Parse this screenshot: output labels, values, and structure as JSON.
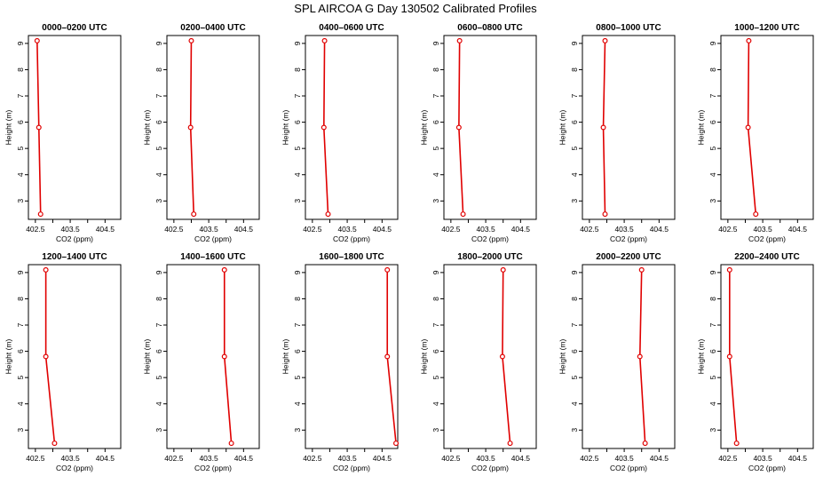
{
  "figure": {
    "title": "SPL AIRCOA G  Day 130502  Calibrated Profiles"
  },
  "chart_data": [
    {
      "type": "line",
      "title": "0000–0200 UTC",
      "xlabel": "CO2 (ppm)",
      "ylabel": "Height (m)",
      "xlim": [
        402.3,
        404.95
      ],
      "ylim": [
        2.3,
        9.3
      ],
      "xticks": [
        "402.5",
        "403.5",
        "404.5"
      ],
      "yticks": [
        "3",
        "4",
        "5",
        "6",
        "7",
        "8",
        "9"
      ],
      "grid": false,
      "line_color": "#e00000",
      "x": [
        402.55,
        402.6,
        402.65
      ],
      "y": [
        9.1,
        5.8,
        2.5
      ]
    },
    {
      "type": "line",
      "title": "0200–0400 UTC",
      "xlabel": "CO2 (ppm)",
      "ylabel": "Height (m)",
      "xlim": [
        402.3,
        404.95
      ],
      "ylim": [
        2.3,
        9.3
      ],
      "xticks": [
        "402.5",
        "403.5",
        "404.5"
      ],
      "yticks": [
        "3",
        "4",
        "5",
        "6",
        "7",
        "8",
        "9"
      ],
      "grid": false,
      "line_color": "#e00000",
      "x": [
        403.0,
        402.98,
        403.07
      ],
      "y": [
        9.1,
        5.8,
        2.5
      ]
    },
    {
      "type": "line",
      "title": "0400–0600 UTC",
      "xlabel": "CO2 (ppm)",
      "ylabel": "Height (m)",
      "xlim": [
        402.3,
        404.95
      ],
      "ylim": [
        2.3,
        9.3
      ],
      "xticks": [
        "402.5",
        "403.5",
        "404.5"
      ],
      "yticks": [
        "3",
        "4",
        "5",
        "6",
        "7",
        "8",
        "9"
      ],
      "grid": false,
      "line_color": "#e00000",
      "x": [
        402.85,
        402.83,
        402.95
      ],
      "y": [
        9.1,
        5.8,
        2.5
      ]
    },
    {
      "type": "line",
      "title": "0600–0800 UTC",
      "xlabel": "CO2 (ppm)",
      "ylabel": "Height (m)",
      "xlim": [
        402.3,
        404.95
      ],
      "ylim": [
        2.3,
        9.3
      ],
      "xticks": [
        "402.5",
        "403.5",
        "404.5"
      ],
      "yticks": [
        "3",
        "4",
        "5",
        "6",
        "7",
        "8",
        "9"
      ],
      "grid": false,
      "line_color": "#e00000",
      "x": [
        402.75,
        402.73,
        402.85
      ],
      "y": [
        9.1,
        5.8,
        2.5
      ]
    },
    {
      "type": "line",
      "title": "0800–1000 UTC",
      "xlabel": "CO2 (ppm)",
      "ylabel": "Height (m)",
      "xlim": [
        402.3,
        404.95
      ],
      "ylim": [
        2.3,
        9.3
      ],
      "xticks": [
        "402.5",
        "403.5",
        "404.5"
      ],
      "yticks": [
        "3",
        "4",
        "5",
        "6",
        "7",
        "8",
        "9"
      ],
      "grid": false,
      "line_color": "#e00000",
      "x": [
        402.95,
        402.9,
        402.95
      ],
      "y": [
        9.1,
        5.8,
        2.5
      ]
    },
    {
      "type": "line",
      "title": "1000–1200 UTC",
      "xlabel": "CO2 (ppm)",
      "ylabel": "Height (m)",
      "xlim": [
        402.3,
        404.95
      ],
      "ylim": [
        2.3,
        9.3
      ],
      "xticks": [
        "402.5",
        "403.5",
        "404.5"
      ],
      "yticks": [
        "3",
        "4",
        "5",
        "6",
        "7",
        "8",
        "9"
      ],
      "grid": false,
      "line_color": "#e00000",
      "x": [
        403.1,
        403.08,
        403.3
      ],
      "y": [
        9.1,
        5.8,
        2.5
      ]
    },
    {
      "type": "line",
      "title": "1200–1400 UTC",
      "xlabel": "CO2 (ppm)",
      "ylabel": "Height (m)",
      "xlim": [
        402.3,
        404.95
      ],
      "ylim": [
        2.3,
        9.3
      ],
      "xticks": [
        "402.5",
        "403.5",
        "404.5"
      ],
      "yticks": [
        "3",
        "4",
        "5",
        "6",
        "7",
        "8",
        "9"
      ],
      "grid": false,
      "line_color": "#e00000",
      "x": [
        402.8,
        402.8,
        403.05
      ],
      "y": [
        9.1,
        5.8,
        2.5
      ]
    },
    {
      "type": "line",
      "title": "1400–1600 UTC",
      "xlabel": "CO2 (ppm)",
      "ylabel": "Height (m)",
      "xlim": [
        402.3,
        404.95
      ],
      "ylim": [
        2.3,
        9.3
      ],
      "xticks": [
        "402.5",
        "403.5",
        "404.5"
      ],
      "yticks": [
        "3",
        "4",
        "5",
        "6",
        "7",
        "8",
        "9"
      ],
      "grid": false,
      "line_color": "#e00000",
      "x": [
        403.95,
        403.95,
        404.15
      ],
      "y": [
        9.1,
        5.8,
        2.5
      ]
    },
    {
      "type": "line",
      "title": "1600–1800 UTC",
      "xlabel": "CO2 (ppm)",
      "ylabel": "Height (m)",
      "xlim": [
        402.3,
        404.95
      ],
      "ylim": [
        2.3,
        9.3
      ],
      "xticks": [
        "402.5",
        "403.5",
        "404.5"
      ],
      "yticks": [
        "3",
        "4",
        "5",
        "6",
        "7",
        "8",
        "9"
      ],
      "grid": false,
      "line_color": "#e00000",
      "x": [
        404.65,
        404.65,
        404.9
      ],
      "y": [
        9.1,
        5.8,
        2.5
      ]
    },
    {
      "type": "line",
      "title": "1800–2000 UTC",
      "xlabel": "CO2 (ppm)",
      "ylabel": "Height (m)",
      "xlim": [
        402.3,
        404.95
      ],
      "ylim": [
        2.3,
        9.3
      ],
      "xticks": [
        "402.5",
        "403.5",
        "404.5"
      ],
      "yticks": [
        "3",
        "4",
        "5",
        "6",
        "7",
        "8",
        "9"
      ],
      "grid": false,
      "line_color": "#e00000",
      "x": [
        404.0,
        403.98,
        404.2
      ],
      "y": [
        9.1,
        5.8,
        2.5
      ]
    },
    {
      "type": "line",
      "title": "2000–2200 UTC",
      "xlabel": "CO2 (ppm)",
      "ylabel": "Height (m)",
      "xlim": [
        402.3,
        404.95
      ],
      "ylim": [
        2.3,
        9.3
      ],
      "xticks": [
        "402.5",
        "403.5",
        "404.5"
      ],
      "yticks": [
        "3",
        "4",
        "5",
        "6",
        "7",
        "8",
        "9"
      ],
      "grid": false,
      "line_color": "#e00000",
      "x": [
        404.0,
        403.95,
        404.1
      ],
      "y": [
        9.1,
        5.8,
        2.5
      ]
    },
    {
      "type": "line",
      "title": "2200–2400 UTC",
      "xlabel": "CO2 (ppm)",
      "ylabel": "Height (m)",
      "xlim": [
        402.3,
        404.95
      ],
      "ylim": [
        2.3,
        9.3
      ],
      "xticks": [
        "402.5",
        "403.5",
        "404.5"
      ],
      "yticks": [
        "3",
        "4",
        "5",
        "6",
        "7",
        "8",
        "9"
      ],
      "grid": false,
      "line_color": "#e00000",
      "x": [
        402.55,
        402.55,
        402.75
      ],
      "y": [
        9.1,
        5.8,
        2.5
      ]
    }
  ]
}
